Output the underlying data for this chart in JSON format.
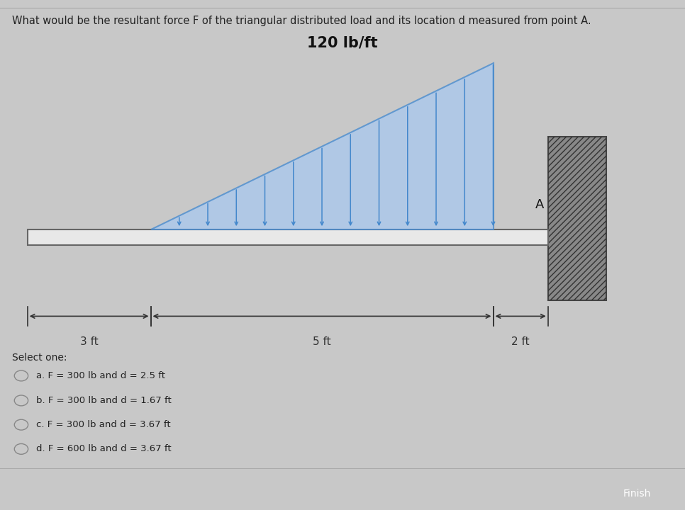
{
  "title": "What would be the resultant force F of the triangular distributed load and its location d measured from point A.",
  "load_label": "120 lb/ft",
  "bg_outer_color": "#c8c8c8",
  "bg_card_color": "#f0eeea",
  "beam_color_face": "#e8e8e8",
  "beam_color_edge": "#666666",
  "load_fill_color": "#a8c8f0",
  "load_line_color": "#4488cc",
  "arrow_color": "#4488cc",
  "wall_face_color": "#888888",
  "wall_hatch_color": "#555555",
  "text_color": "#222222",
  "dim_color": "#333333",
  "question_fontsize": 10.5,
  "load_label_fontsize": 15,
  "point_A_fontsize": 13,
  "dim_fontsize": 11,
  "options_fontsize": 9.5,
  "select_fontsize": 10,
  "options": [
    "a. F = 300 lb and d = 2.5 ft",
    "b. F = 300 lb and d = 1.67 ft",
    "c. F = 300 lb and d = 3.67 ft",
    "d. F = 600 lb and d = 3.67 ft"
  ]
}
